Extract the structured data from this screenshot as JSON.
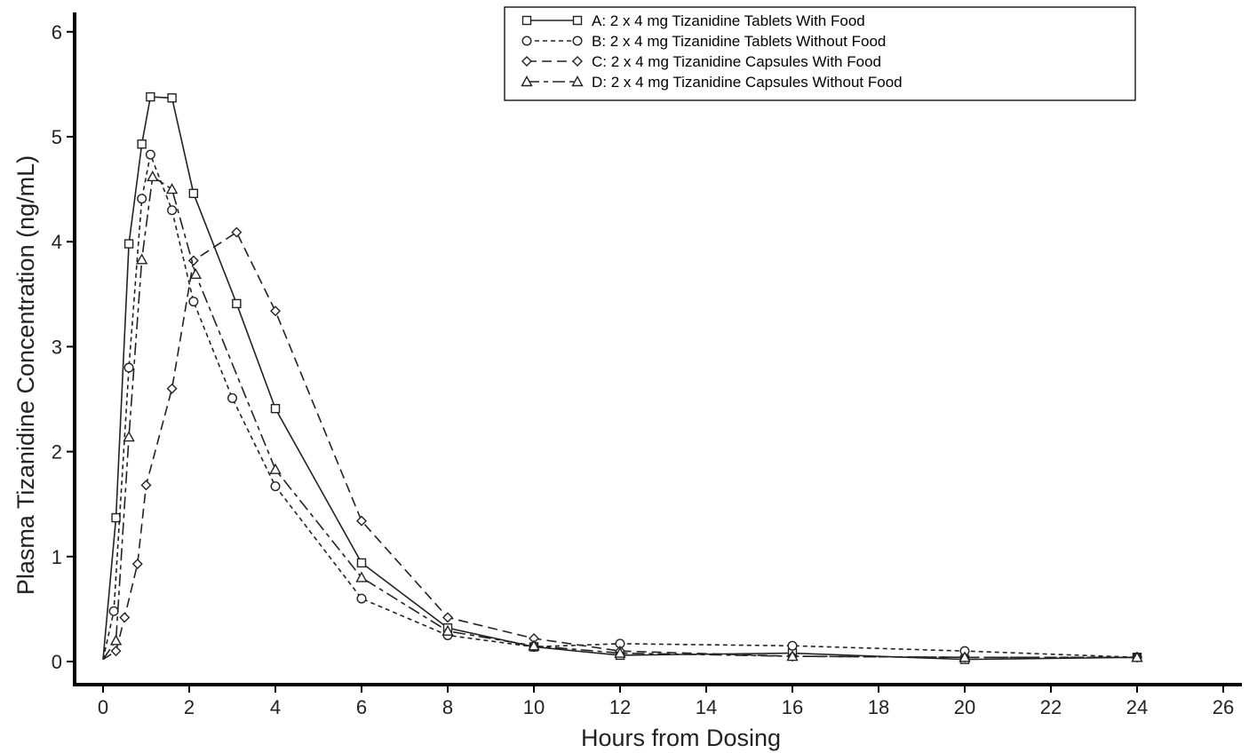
{
  "chart_data": {
    "type": "line",
    "xlabel": "Hours from Dosing",
    "ylabel": "Plasma Tizanidine Concentration (ng/mL)",
    "xlim": [
      0,
      26
    ],
    "ylim": [
      0,
      6
    ],
    "xticks": [
      "0",
      "2",
      "4",
      "6",
      "8",
      "10",
      "12",
      "14",
      "16",
      "18",
      "20",
      "22",
      "24",
      "26"
    ],
    "yticks": [
      "0",
      "1",
      "2",
      "3",
      "4",
      "5",
      "6"
    ],
    "grid": false,
    "legend_position": "top-right",
    "series": [
      {
        "key": "A",
        "name": "A: 2 x 4 mg Tizanidine Tablets With Food",
        "marker": "square",
        "dash": "solid",
        "x": [
          0,
          0.3,
          0.6,
          0.9,
          1.1,
          1.6,
          2.1,
          3.1,
          4.0,
          6.0,
          8.0,
          10.0,
          12.0,
          16.0,
          20.0,
          24.0
        ],
        "y": [
          0.02,
          1.37,
          3.98,
          4.93,
          5.38,
          5.37,
          4.46,
          3.41,
          2.41,
          0.94,
          0.32,
          0.14,
          0.06,
          0.08,
          0.02,
          0.04
        ]
      },
      {
        "key": "B",
        "name": "B: 2 x 4 mg Tizanidine Tablets Without Food",
        "marker": "circle",
        "dash": "short",
        "x": [
          0,
          0.25,
          0.6,
          0.9,
          1.1,
          1.6,
          2.1,
          3.0,
          4.0,
          6.0,
          8.0,
          10.0,
          12.0,
          16.0,
          20.0,
          24.0
        ],
        "y": [
          0.02,
          0.48,
          2.8,
          4.41,
          4.83,
          4.3,
          3.43,
          2.51,
          1.67,
          0.6,
          0.25,
          0.14,
          0.17,
          0.15,
          0.1,
          0.04
        ]
      },
      {
        "key": "C",
        "name": "C: 2 x 4 mg Tizanidine Capsules With Food",
        "marker": "diamond",
        "dash": "long",
        "x": [
          0,
          0.3,
          0.5,
          0.8,
          1.0,
          1.6,
          2.1,
          3.1,
          4.0,
          6.0,
          8.0,
          10.0,
          12.0,
          16.0,
          20.0,
          24.0
        ],
        "y": [
          0.02,
          0.1,
          0.42,
          0.93,
          1.68,
          2.6,
          3.82,
          4.09,
          3.34,
          1.34,
          0.42,
          0.22,
          0.1,
          0.05,
          0.04,
          0.04
        ]
      },
      {
        "key": "D",
        "name": "D: 2 x 4 mg Tizanidine Capsules Without Food",
        "marker": "triangle",
        "dash": "longshort",
        "x": [
          0,
          0.3,
          0.6,
          0.9,
          1.15,
          1.6,
          2.15,
          4.0,
          6.0,
          8.0,
          10.0,
          12.0,
          16.0,
          20.0,
          24.0
        ],
        "y": [
          0.02,
          0.2,
          2.14,
          3.83,
          4.62,
          4.5,
          3.69,
          1.83,
          0.8,
          0.29,
          0.15,
          0.08,
          0.05,
          0.04,
          0.04
        ]
      }
    ]
  }
}
